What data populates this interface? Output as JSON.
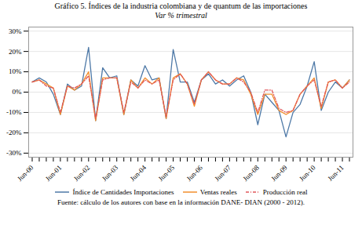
{
  "chart_data": {
    "type": "line",
    "title": "Gráfico 5. Índices de la industria colombiana y de quantum de las importaciones",
    "subtitle": "Var % trimestral",
    "caption": "Fuente: cálculo de los autores con base en la información DANE- DIAN (2000 - 2012).",
    "categories": [
      "Jun-00",
      null,
      null,
      null,
      "Jun-01",
      null,
      null,
      null,
      "Jun-02",
      null,
      null,
      null,
      "Jun-03",
      null,
      null,
      null,
      "Jun-04",
      null,
      null,
      null,
      "Jun-05",
      null,
      null,
      null,
      "Jun-06",
      null,
      null,
      null,
      "Jun-07",
      null,
      null,
      null,
      "Jun-08",
      null,
      null,
      null,
      "Jun-09",
      null,
      null,
      null,
      "Jun-10",
      null,
      null,
      null,
      "Jun-11",
      null
    ],
    "series": [
      {
        "name": "Índice de Cantidades Importaciones",
        "line_style": "solid",
        "values": [
          0.05,
          0.07,
          0.05,
          -0.01,
          -0.11,
          0.04,
          0.01,
          0.03,
          0.22,
          -0.14,
          0.12,
          0.07,
          0.08,
          -0.11,
          0.06,
          0.03,
          0.13,
          0.06,
          0.07,
          -0.13,
          0.21,
          0.05,
          0.05,
          -0.05,
          0.06,
          0.09,
          0.04,
          0.06,
          0.03,
          0.06,
          0.08,
          0.0,
          -0.16,
          -0.01,
          -0.05,
          -0.09,
          -0.22,
          -0.1,
          -0.06,
          0.03,
          0.15,
          -0.09,
          0.0,
          0.05,
          0.02,
          0.06
        ]
      },
      {
        "name": "Ventas reales",
        "line_style": "solid",
        "values": [
          0.05,
          0.06,
          0.04,
          0.02,
          -0.11,
          0.03,
          0.01,
          0.04,
          0.1,
          -0.14,
          0.07,
          0.07,
          0.07,
          -0.11,
          0.06,
          0.02,
          0.07,
          0.04,
          0.07,
          -0.13,
          0.07,
          0.09,
          0.04,
          -0.07,
          0.06,
          0.1,
          0.06,
          0.04,
          0.04,
          0.07,
          0.06,
          -0.01,
          -0.11,
          -0.01,
          -0.01,
          -0.09,
          -0.11,
          -0.09,
          -0.01,
          0.03,
          0.07,
          -0.08,
          0.05,
          0.06,
          0.02,
          0.06
        ]
      },
      {
        "name": "Producción real",
        "line_style": "dashdot",
        "values": [
          0.05,
          0.06,
          0.03,
          0.02,
          -0.1,
          0.03,
          0.02,
          0.04,
          0.08,
          -0.13,
          0.06,
          0.07,
          0.07,
          -0.1,
          0.05,
          0.02,
          0.06,
          0.04,
          0.06,
          -0.12,
          0.06,
          0.09,
          0.04,
          -0.06,
          0.06,
          0.1,
          0.06,
          0.04,
          0.04,
          0.07,
          0.05,
          0.0,
          -0.1,
          0.01,
          0.01,
          -0.08,
          -0.1,
          -0.09,
          -0.01,
          0.03,
          0.06,
          -0.07,
          0.05,
          0.06,
          0.02,
          0.05
        ]
      }
    ],
    "ylim": [
      -0.32,
      0.32
    ],
    "yticks": [
      {
        "value": -0.3,
        "label": "-30%"
      },
      {
        "value": -0.2,
        "label": "-20%"
      },
      {
        "value": -0.1,
        "label": "-10%"
      },
      {
        "value": 0.0,
        "label": "0%"
      },
      {
        "value": 0.1,
        "label": "10%"
      },
      {
        "value": 0.2,
        "label": "20%"
      },
      {
        "value": 0.3,
        "label": "30%"
      }
    ],
    "grid": true
  }
}
